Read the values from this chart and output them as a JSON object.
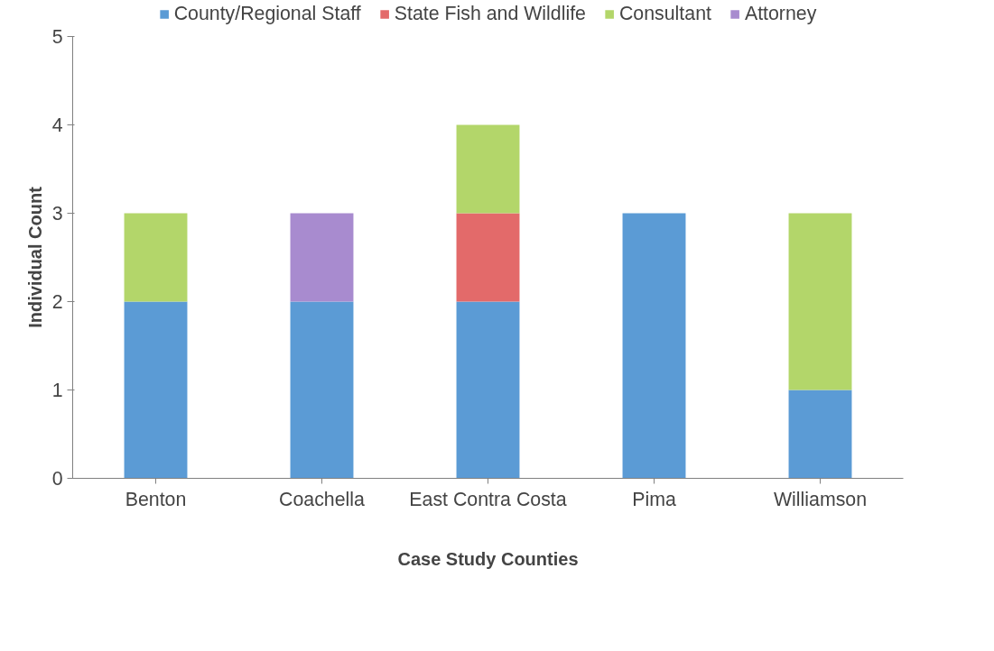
{
  "chart_data": {
    "type": "bar",
    "stacked": true,
    "xlabel": "Case Study Counties",
    "ylabel": "Individual Count",
    "categories": [
      "Benton",
      "Coachella",
      "East Contra Costa",
      "Pima",
      "Williamson"
    ],
    "series": [
      {
        "name": "County/Regional Staff",
        "color": "#5b9bd5",
        "values": [
          2,
          2,
          2,
          3,
          1
        ]
      },
      {
        "name": "State Fish and Wildlife",
        "color": "#e36a6a",
        "values": [
          0,
          0,
          1,
          0,
          0
        ]
      },
      {
        "name": "Consultant",
        "color": "#b3d66a",
        "values": [
          1,
          0,
          1,
          0,
          2
        ]
      },
      {
        "name": "Attorney",
        "color": "#a88bcf",
        "values": [
          0,
          1,
          0,
          0,
          0
        ]
      }
    ],
    "ylim": [
      0,
      5
    ],
    "yticks": [
      0,
      1,
      2,
      3,
      4,
      5
    ],
    "grid": false,
    "legend": "top"
  }
}
